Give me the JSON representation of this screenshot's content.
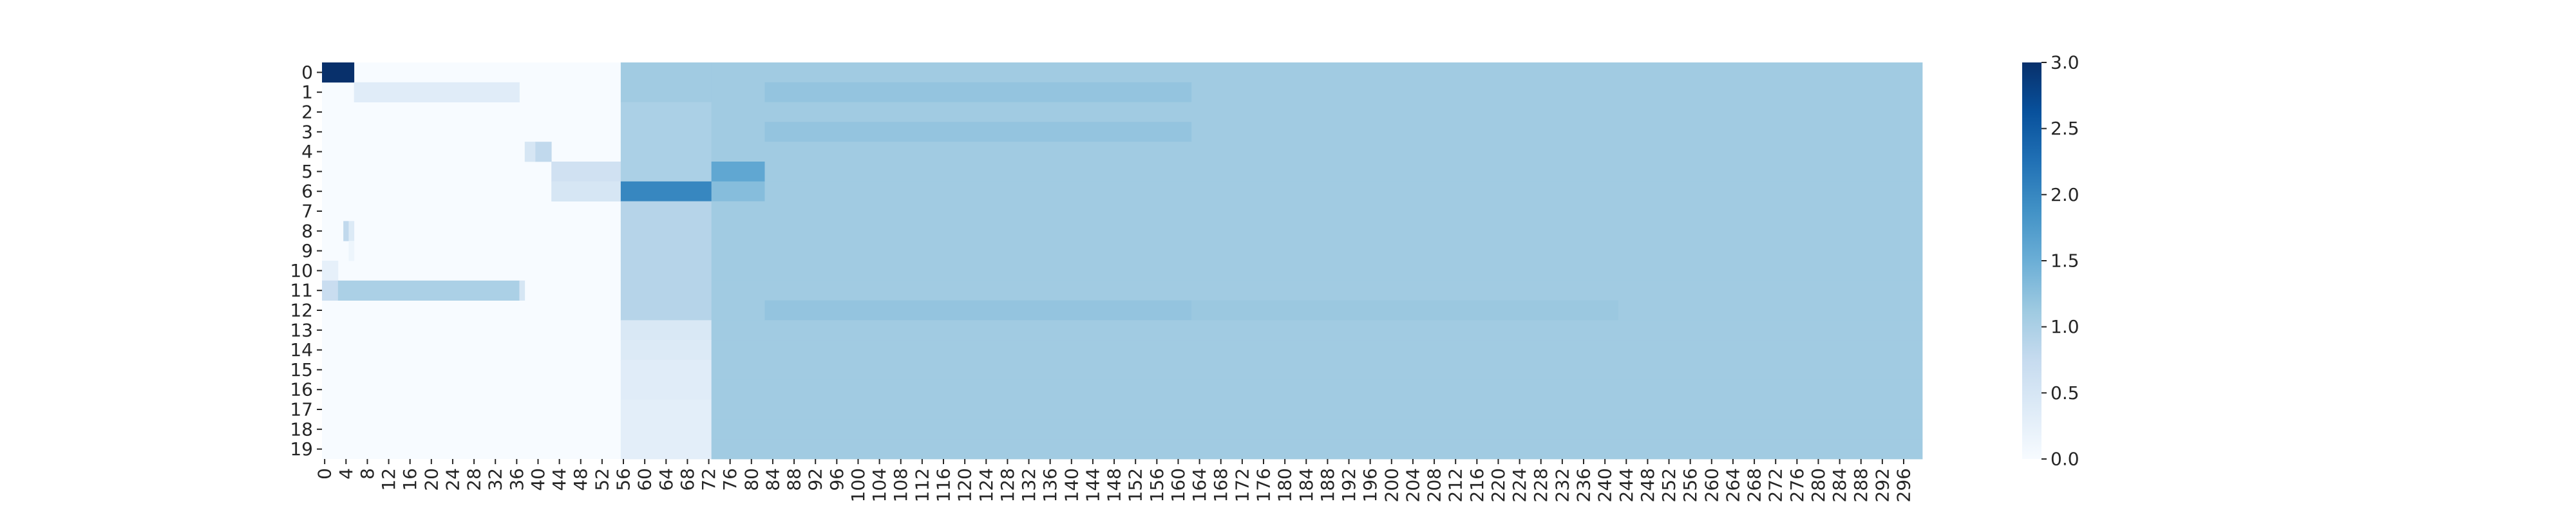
{
  "chart_data": {
    "type": "heatmap",
    "title": "",
    "xlabel": "",
    "ylabel": "",
    "n_rows": 20,
    "n_cols": 300,
    "x_tick_step": 4,
    "y_tick_step": 1,
    "x_tick_labels": [
      "0",
      "4",
      "8",
      "12",
      "16",
      "20",
      "24",
      "28",
      "32",
      "36",
      "40",
      "44",
      "48",
      "52",
      "56",
      "60",
      "64",
      "68",
      "72",
      "76",
      "80",
      "84",
      "88",
      "92",
      "96",
      "100",
      "104",
      "108",
      "112",
      "116",
      "120",
      "124",
      "128",
      "132",
      "136",
      "140",
      "144",
      "148",
      "152",
      "156",
      "160",
      "164",
      "168",
      "172",
      "176",
      "180",
      "184",
      "188",
      "192",
      "196",
      "200",
      "204",
      "208",
      "212",
      "216",
      "220",
      "224",
      "228",
      "232",
      "236",
      "240",
      "244",
      "248",
      "252",
      "256",
      "260",
      "264",
      "268",
      "272",
      "276",
      "280",
      "284",
      "288",
      "292",
      "296"
    ],
    "y_tick_labels": [
      "0",
      "1",
      "2",
      "3",
      "4",
      "5",
      "6",
      "7",
      "8",
      "9",
      "10",
      "11",
      "12",
      "13",
      "14",
      "15",
      "16",
      "17",
      "18",
      "19"
    ],
    "colormap": "Blues",
    "vmin": 0.0,
    "vmax": 3.0,
    "colorbar_ticks": [
      "0.0",
      "0.5",
      "1.0",
      "1.5",
      "2.0",
      "2.5",
      "3.0"
    ],
    "colorbar_tick_values": [
      0.0,
      0.5,
      1.0,
      1.5,
      2.0,
      2.5,
      3.0
    ],
    "description_of_values": "runs of [start_col, end_col_exclusive, value] per row; cells not covered have value 0",
    "rows": [
      [
        [
          0,
          6,
          3.0
        ],
        [
          56,
          73,
          1.1
        ],
        [
          73,
          300,
          1.1
        ]
      ],
      [
        [
          6,
          37,
          0.35
        ],
        [
          56,
          73,
          1.1
        ],
        [
          73,
          83,
          1.1
        ],
        [
          83,
          163,
          1.2
        ],
        [
          163,
          300,
          1.1
        ]
      ],
      [
        [
          56,
          73,
          1.0
        ],
        [
          73,
          300,
          1.1
        ]
      ],
      [
        [
          56,
          73,
          1.0
        ],
        [
          73,
          83,
          1.1
        ],
        [
          83,
          163,
          1.2
        ],
        [
          163,
          300,
          1.1
        ]
      ],
      [
        [
          38,
          40,
          0.5
        ],
        [
          40,
          43,
          0.8
        ],
        [
          56,
          73,
          1.0
        ],
        [
          73,
          300,
          1.1
        ]
      ],
      [
        [
          43,
          56,
          0.6
        ],
        [
          56,
          73,
          1.0
        ],
        [
          73,
          83,
          1.6
        ],
        [
          83,
          300,
          1.1
        ]
      ],
      [
        [
          43,
          56,
          0.5
        ],
        [
          56,
          73,
          2.0
        ],
        [
          73,
          83,
          1.3
        ],
        [
          83,
          300,
          1.1
        ]
      ],
      [
        [
          56,
          73,
          0.9
        ],
        [
          73,
          300,
          1.1
        ]
      ],
      [
        [
          4,
          5,
          0.8
        ],
        [
          5,
          6,
          0.4
        ],
        [
          56,
          73,
          0.9
        ],
        [
          73,
          300,
          1.1
        ]
      ],
      [
        [
          5,
          6,
          0.15
        ],
        [
          56,
          73,
          0.9
        ],
        [
          73,
          300,
          1.1
        ]
      ],
      [
        [
          0,
          3,
          0.25
        ],
        [
          56,
          73,
          0.9
        ],
        [
          73,
          300,
          1.1
        ]
      ],
      [
        [
          0,
          3,
          0.7
        ],
        [
          3,
          37,
          1.0
        ],
        [
          37,
          38,
          0.5
        ],
        [
          56,
          73,
          0.9
        ],
        [
          73,
          300,
          1.1
        ]
      ],
      [
        [
          56,
          73,
          0.9
        ],
        [
          73,
          83,
          1.1
        ],
        [
          83,
          163,
          1.2
        ],
        [
          163,
          243,
          1.15
        ],
        [
          243,
          300,
          1.1
        ]
      ],
      [
        [
          56,
          73,
          0.45
        ],
        [
          73,
          300,
          1.1
        ]
      ],
      [
        [
          56,
          73,
          0.4
        ],
        [
          73,
          300,
          1.1
        ]
      ],
      [
        [
          56,
          73,
          0.35
        ],
        [
          73,
          300,
          1.1
        ]
      ],
      [
        [
          56,
          73,
          0.35
        ],
        [
          73,
          300,
          1.1
        ]
      ],
      [
        [
          56,
          73,
          0.3
        ],
        [
          73,
          300,
          1.1
        ]
      ],
      [
        [
          56,
          73,
          0.3
        ],
        [
          73,
          300,
          1.1
        ]
      ],
      [
        [
          56,
          73,
          0.3
        ],
        [
          73,
          300,
          1.1
        ]
      ]
    ]
  }
}
